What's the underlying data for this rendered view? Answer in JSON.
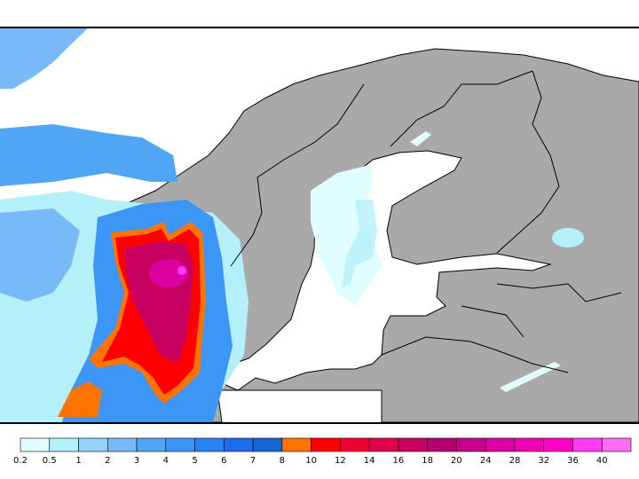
{
  "map": {
    "land_color": "#a9a9a9",
    "sea_color": "#ffffff",
    "border_color": "#000000"
  },
  "legend": {
    "labels": [
      "0.2",
      "0.5",
      "1",
      "2",
      "3",
      "4",
      "5",
      "6",
      "7",
      "8",
      "10",
      "12",
      "14",
      "16",
      "18",
      "20",
      "24",
      "28",
      "32",
      "36",
      "40"
    ],
    "colors": [
      "#e0fefe",
      "#b4f0fa",
      "#96d2fa",
      "#78b9fa",
      "#50a5f5",
      "#3c96f5",
      "#2882f0",
      "#1e6eeb",
      "#1464d2",
      "#ff7300",
      "#ff0000",
      "#f00032",
      "#e1004b",
      "#c8005f",
      "#b4006e",
      "#c8008c",
      "#dc00a0",
      "#f000b4",
      "#ff00c8",
      "#ff3cf5",
      "#ff6ef5"
    ]
  }
}
